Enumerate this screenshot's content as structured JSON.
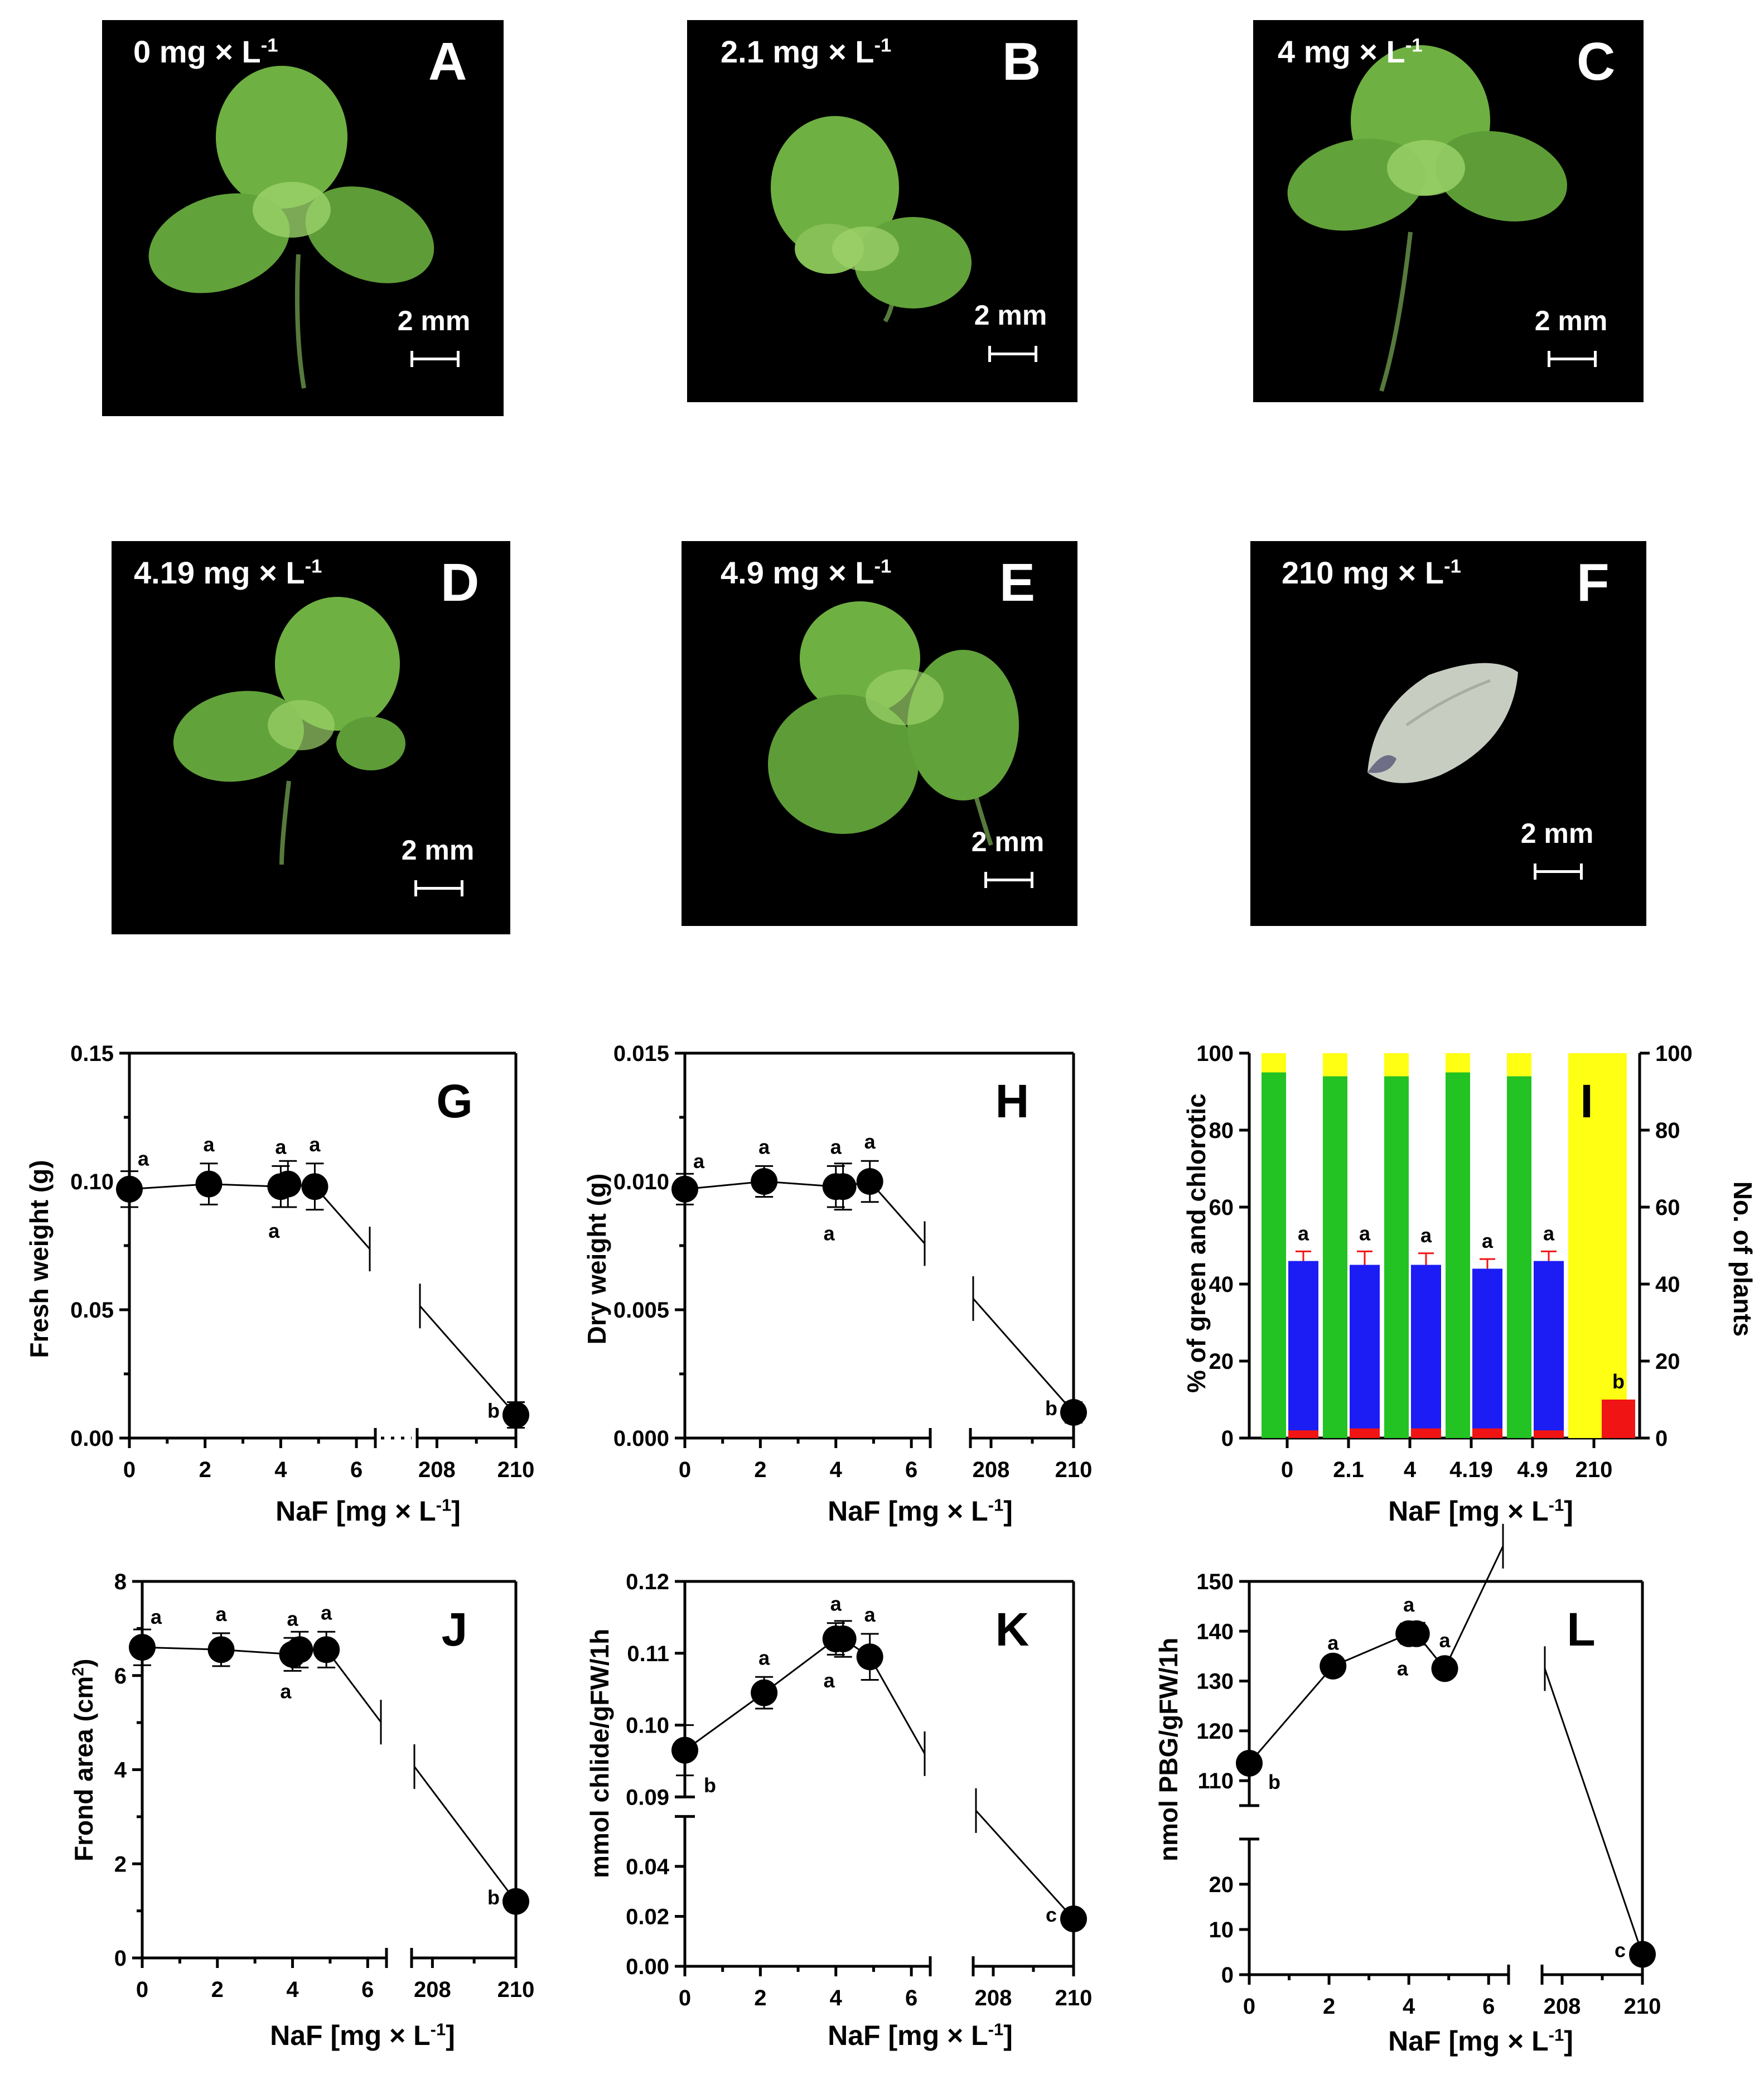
{
  "photos": [
    {
      "letter": "A",
      "dose": "0 mg × L",
      "exp": "-1",
      "scale": "2 mm"
    },
    {
      "letter": "B",
      "dose": "2.1 mg × L",
      "exp": "-1",
      "scale": "2 mm"
    },
    {
      "letter": "C",
      "dose": "4 mg × L",
      "exp": "-1",
      "scale": "2 mm"
    },
    {
      "letter": "D",
      "dose": "4.19 mg × L",
      "exp": "-1",
      "scale": "2 mm"
    },
    {
      "letter": "E",
      "dose": "4.9 mg × L",
      "exp": "-1",
      "scale": "2 mm"
    },
    {
      "letter": "F",
      "dose": "210 mg × L",
      "exp": "-1",
      "scale": "2 mm"
    }
  ],
  "colors": {
    "green": "#22c322",
    "blue": "#1c1cf5",
    "red": "#f01414",
    "yellow": "#ffff14",
    "frond": "#6fb042",
    "frond_dark": "#3d7a2c",
    "bleached": "#c8cdc2"
  },
  "xlabel_main": "NaF [mg × L",
  "xlabel_exp": "-1",
  "chart_data": [
    {
      "panel": "G",
      "type": "line",
      "ylabel": "Fresh weight (g)",
      "ylabel_exp": "",
      "ylim": [
        0,
        0.15
      ],
      "yticks": [
        "0.00",
        "0.05",
        "0.10",
        "0.15"
      ],
      "xticks": [
        "0",
        "2",
        "4",
        "6",
        "208",
        "210"
      ],
      "x": [
        0,
        2.1,
        4,
        4.19,
        4.9,
        210
      ],
      "y": [
        0.097,
        0.099,
        0.098,
        0.099,
        0.098,
        0.009
      ],
      "err": [
        0.007,
        0.008,
        0.008,
        0.009,
        0.009,
        0.005
      ],
      "letters": [
        "a",
        "a",
        "a",
        "a",
        "a",
        "b"
      ]
    },
    {
      "panel": "H",
      "type": "line",
      "ylabel": "Dry weight (g)",
      "ylabel_exp": "",
      "ylim": [
        0,
        0.015
      ],
      "yticks": [
        "0.000",
        "0.005",
        "0.010",
        "0.015"
      ],
      "xticks": [
        "0",
        "2",
        "4",
        "6",
        "208",
        "210"
      ],
      "x": [
        0,
        2.1,
        4,
        4.19,
        4.9,
        210
      ],
      "y": [
        0.0097,
        0.01,
        0.0098,
        0.0098,
        0.01,
        0.001
      ],
      "err": [
        0.0006,
        0.0006,
        0.0008,
        0.0009,
        0.0008,
        0.0004
      ],
      "letters": [
        "a",
        "a",
        "a",
        "a",
        "a",
        "b"
      ]
    },
    {
      "panel": "I",
      "type": "bar",
      "ylabel": "% of green and chlorotic",
      "y2label": "No. of plants",
      "ylim": [
        0,
        100
      ],
      "yticks": [
        "0",
        "20",
        "40",
        "60",
        "80",
        "100"
      ],
      "categories": [
        "0",
        "2.1",
        "4",
        "4.19",
        "4.9",
        "210"
      ],
      "series": [
        {
          "name": "",
          "color": "#22c322",
          "values": [
            95,
            94,
            94,
            95,
            94,
            0
          ],
          "err": [
            1.5,
            1.5,
            1.5,
            1.5,
            1.5,
            0
          ]
        },
        {
          "name": "",
          "color": "#ffff14",
          "values": [
            5,
            6,
            6,
            5,
            6,
            100
          ],
          "err": [
            0,
            0,
            0,
            0,
            0,
            0
          ]
        },
        {
          "name": "",
          "color": "#1c1cf5",
          "values": [
            46,
            45,
            45,
            44,
            46,
            0
          ],
          "err": [
            2.5,
            3.5,
            3,
            2.5,
            2.5,
            0
          ]
        },
        {
          "name": "",
          "color": "#f01414",
          "values": [
            2,
            2.5,
            2.5,
            2.5,
            2,
            10
          ],
          "err": [
            2,
            2,
            2,
            2,
            2,
            0
          ]
        }
      ],
      "letters": [
        "a",
        "a",
        "a",
        "a",
        "a",
        "b"
      ]
    },
    {
      "panel": "J",
      "type": "line",
      "ylabel": "Frond area (cm",
      "ylabel_exp": "2",
      "ylabel_tail": ")",
      "ylim": [
        0,
        8
      ],
      "yticks": [
        "0",
        "2",
        "4",
        "6",
        "8"
      ],
      "xticks": [
        "0",
        "2",
        "4",
        "6",
        "208",
        "210"
      ],
      "x": [
        0,
        2.1,
        4,
        4.19,
        4.9,
        210
      ],
      "y": [
        6.6,
        6.55,
        6.45,
        6.55,
        6.55,
        1.2
      ],
      "err": [
        0.38,
        0.35,
        0.35,
        0.38,
        0.38,
        0.1
      ],
      "letters": [
        "a",
        "a",
        "a",
        "a",
        "a",
        "b"
      ]
    },
    {
      "panel": "K",
      "type": "line",
      "ylabel": "mmol chlide/gFW/1h",
      "ylabel_exp": "",
      "ylim_lower": [
        0,
        0.06
      ],
      "ylim_upper": [
        0.09,
        0.12
      ],
      "yticks_lower": [
        "0.00",
        "0.02",
        "0.04"
      ],
      "yticks_upper": [
        "0.09",
        "0.10",
        "0.11",
        "0.12"
      ],
      "xticks": [
        "0",
        "2",
        "4",
        "6",
        "208",
        "210"
      ],
      "x": [
        0,
        2.1,
        4,
        4.19,
        4.9,
        210
      ],
      "y": [
        0.0965,
        0.1045,
        0.112,
        0.112,
        0.1095,
        0.019
      ],
      "err": [
        0.0035,
        0.0022,
        0.0022,
        0.0025,
        0.0032,
        0.003
      ],
      "letters": [
        "b",
        "a",
        "a",
        "a",
        "a",
        "c"
      ]
    },
    {
      "panel": "L",
      "type": "line",
      "ylabel": "nmol PBG/gFW/1h",
      "ylabel_exp": "",
      "ylim_lower": [
        0,
        30
      ],
      "ylim_upper": [
        105,
        150
      ],
      "yticks_lower": [
        "0",
        "10",
        "20"
      ],
      "yticks_upper": [
        "110",
        "120",
        "130",
        "140",
        "150"
      ],
      "xticks": [
        "0",
        "2",
        "4",
        "6",
        "208",
        "210"
      ],
      "x": [
        0,
        2.1,
        4,
        4.19,
        4.9,
        210
      ],
      "y": [
        113.5,
        133,
        139.5,
        139.5,
        132.5,
        4.5
      ],
      "err": [
        1.8,
        0.8,
        2,
        2.2,
        1.8,
        0.8
      ],
      "letters": [
        "b",
        "a",
        "a",
        "a",
        "a",
        "c"
      ]
    }
  ]
}
